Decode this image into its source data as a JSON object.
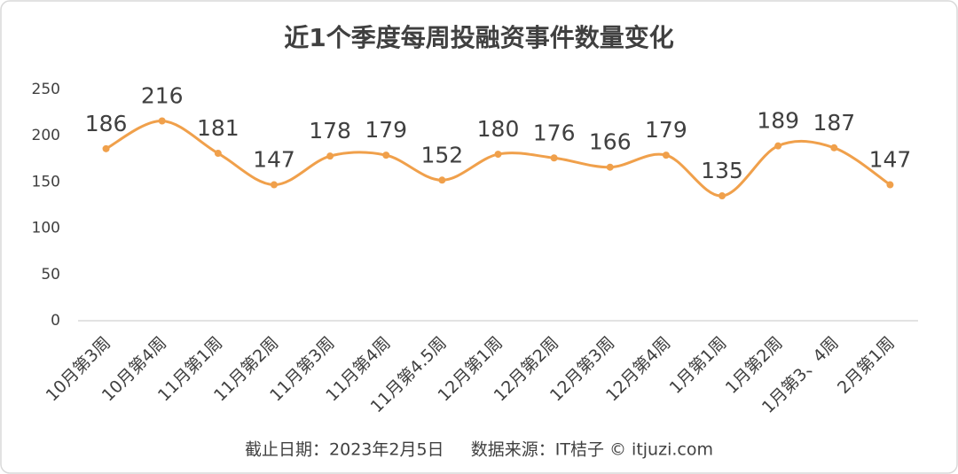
{
  "chart_data": {
    "type": "line",
    "title": "近1个季度每周投融资事件数量变化",
    "categories": [
      "10月第3周",
      "10月第4周",
      "11月第1周",
      "11月第2周",
      "11月第3周",
      "11月第4周",
      "11月第4.5周",
      "12月第1周",
      "12月第2周",
      "12月第3周",
      "12月第4周",
      "1月第1周",
      "1月第2周",
      "1月第3、4周",
      "2月第1周"
    ],
    "values": [
      186,
      216,
      181,
      147,
      178,
      179,
      152,
      180,
      176,
      166,
      179,
      135,
      189,
      187,
      147
    ],
    "color": "#f0a04b",
    "smooth": true,
    "ylim": [
      0,
      250
    ],
    "yticks": [
      0,
      50,
      100,
      150,
      200,
      250
    ],
    "grid": false,
    "footer": "截止日期：2023年2月5日     数据来源：IT桔子 © itjuzi.com"
  }
}
